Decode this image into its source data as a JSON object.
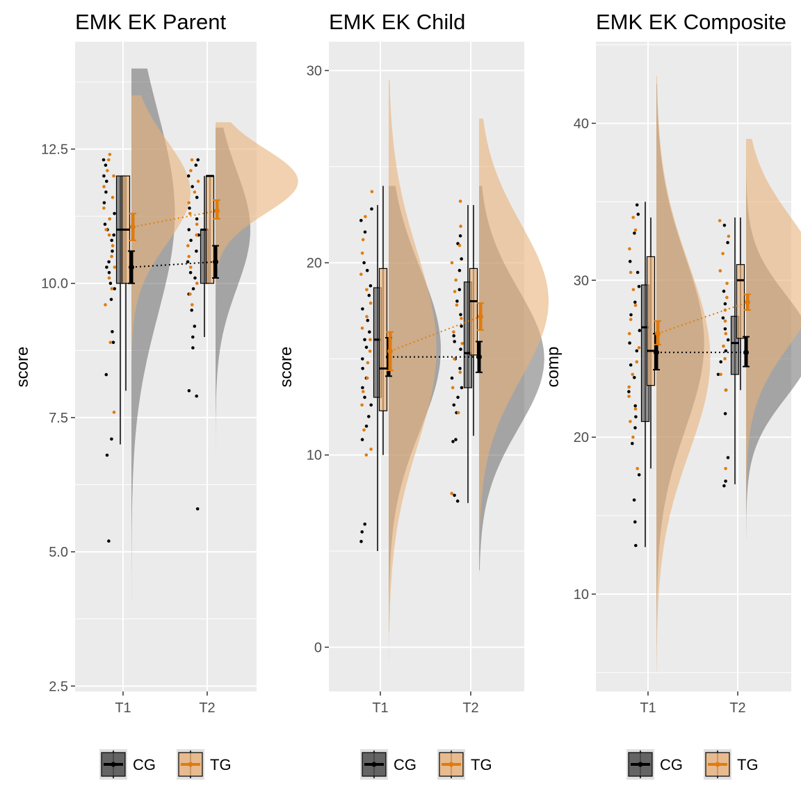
{
  "colors": {
    "CG": "#000000",
    "TG": "#e07b10",
    "CG_fill": "#4d4d4d",
    "TG_fill": "#e8b27a",
    "panel_bg": "#ebebeb",
    "grid": "#ffffff"
  },
  "legend": {
    "items": [
      {
        "key": "CG",
        "label": "CG"
      },
      {
        "key": "TG",
        "label": "TG"
      }
    ],
    "placement": "bottom"
  },
  "chart_data": [
    {
      "type": "raincloud",
      "title": "EMK EK Parent",
      "xlabel": "",
      "ylabel": "score",
      "categories": [
        "T1",
        "T2"
      ],
      "ylim": [
        2.4,
        14.5
      ],
      "yticks": [
        2.5,
        5.0,
        7.5,
        10.0,
        12.5
      ],
      "ytick_labels": [
        "2.5",
        "5.0",
        "7.5",
        "10.0",
        "12.5"
      ],
      "grid": true,
      "series": [
        {
          "name": "CG",
          "box": [
            {
              "category": "T1",
              "min": 7.0,
              "q1": 10.0,
              "median": 11.0,
              "q3": 12.0,
              "max": 12.0
            },
            {
              "category": "T2",
              "min": 9.0,
              "q1": 10.0,
              "median": 11.0,
              "q3": 11.0,
              "max": 12.0
            }
          ],
          "mean": [
            10.3,
            10.4
          ],
          "ci": [
            [
              10.0,
              10.6
            ],
            [
              10.1,
              10.7
            ]
          ],
          "density": [
            {
              "category": "T1",
              "ymin": 3.4,
              "ymax": 14.0,
              "peak": 11.3,
              "sd": 1.9,
              "w": 0.5
            },
            {
              "category": "T2",
              "ymin": 5.2,
              "ymax": 12.9,
              "peak": 11.0,
              "sd": 1.1,
              "w": 0.4
            }
          ],
          "points": [
            {
              "category": "T1",
              "values": [
                12.3,
                12.2,
                12.0,
                11.9,
                11.7,
                11.5,
                11.3,
                11.1,
                11.0,
                10.9,
                10.8,
                10.6,
                10.4,
                10.3,
                10.2,
                10.0,
                9.9,
                9.7,
                9.1,
                8.9,
                8.3,
                7.1,
                6.8,
                5.2
              ]
            },
            {
              "category": "T2",
              "values": [
                12.3,
                12.2,
                12.0,
                11.8,
                11.6,
                11.4,
                11.2,
                11.0,
                10.9,
                10.8,
                10.6,
                10.4,
                10.2,
                10.1,
                9.9,
                9.8,
                9.5,
                9.2,
                9.0,
                8.8,
                8.0,
                7.9,
                5.8
              ]
            }
          ]
        },
        {
          "name": "TG",
          "box": [
            {
              "category": "T1",
              "min": 8.0,
              "q1": 10.0,
              "median": 11.0,
              "q3": 12.0,
              "max": 12.0
            },
            {
              "category": "T2",
              "min": 10.0,
              "q1": 10.0,
              "median": 12.0,
              "q3": 12.0,
              "max": 12.0
            }
          ],
          "mean": [
            11.05,
            11.35
          ],
          "ci": [
            [
              10.8,
              11.3
            ],
            [
              11.2,
              11.55
            ]
          ],
          "density": [
            {
              "category": "T1",
              "ymin": 4.5,
              "ymax": 13.5,
              "peak": 11.7,
              "sd": 0.95,
              "w": 0.68
            },
            {
              "category": "T2",
              "ymin": 9.0,
              "ymax": 13.0,
              "peak": 11.9,
              "sd": 0.6,
              "w": 0.95
            }
          ],
          "points": [
            {
              "category": "T1",
              "values": [
                12.4,
                12.3,
                12.1,
                12.0,
                11.8,
                11.6,
                11.4,
                11.2,
                11.0,
                10.9,
                10.7,
                10.5,
                10.3,
                10.1,
                9.9,
                9.6,
                8.9,
                7.6
              ]
            },
            {
              "category": "T2",
              "values": [
                12.3,
                12.1,
                11.9,
                11.7,
                11.5,
                11.3,
                11.1,
                10.9,
                10.7,
                10.5,
                10.3,
                10.0,
                9.8,
                9.6
              ]
            }
          ]
        }
      ]
    },
    {
      "type": "raincloud",
      "title": "EMK EK Child",
      "xlabel": "",
      "ylabel": "score",
      "categories": [
        "T1",
        "T2"
      ],
      "ylim": [
        -2.3,
        31.5
      ],
      "yticks": [
        0,
        10,
        20,
        30
      ],
      "ytick_labels": [
        "0",
        "10",
        "20",
        "30"
      ],
      "grid": true,
      "series": [
        {
          "name": "CG",
          "box": [
            {
              "category": "T1",
              "min": 5.0,
              "q1": 13.0,
              "median": 16.0,
              "q3": 18.7,
              "max": 23.0
            },
            {
              "category": "T2",
              "min": 7.5,
              "q1": 13.5,
              "median": 15.3,
              "q3": 19.0,
              "max": 23.0
            }
          ],
          "mean": [
            15.1,
            15.1
          ],
          "ci": [
            [
              14.1,
              16.1
            ],
            [
              14.3,
              15.9
            ]
          ],
          "density": [
            {
              "category": "T1",
              "ymin": -0.8,
              "ymax": 24.0,
              "peak": 15.5,
              "sd": 4.2,
              "w": 0.6
            },
            {
              "category": "T2",
              "ymin": 4.0,
              "ymax": 24.0,
              "peak": 15.0,
              "sd": 3.6,
              "w": 0.75
            }
          ],
          "points": [
            {
              "category": "T1",
              "values": [
                22.8,
                22.2,
                21.6,
                20.0,
                19.6,
                18.8,
                18.3,
                17.6,
                17.0,
                16.4,
                16.0,
                15.6,
                15.0,
                14.5,
                14.0,
                13.5,
                13.0,
                12.6,
                12.0,
                11.5,
                10.8,
                6.4,
                6.0,
                5.5
              ]
            },
            {
              "category": "T2",
              "values": [
                21.4,
                21.0,
                20.2,
                19.6,
                18.6,
                18.0,
                17.3,
                16.7,
                16.2,
                15.9,
                15.5,
                15.0,
                14.5,
                14.0,
                13.5,
                13.0,
                12.6,
                12.2,
                10.8,
                10.7,
                7.9,
                7.6
              ]
            }
          ]
        },
        {
          "name": "TG",
          "box": [
            {
              "category": "T1",
              "min": 10.0,
              "q1": 12.3,
              "median": 14.5,
              "q3": 19.7,
              "max": 24.0
            },
            {
              "category": "T2",
              "min": 11.0,
              "q1": 15.2,
              "median": 18.0,
              "q3": 19.7,
              "max": 23.0
            }
          ],
          "mean": [
            15.4,
            17.2
          ],
          "ci": [
            [
              14.4,
              16.4
            ],
            [
              16.5,
              17.9
            ]
          ],
          "density": [
            {
              "category": "T1",
              "ymin": 0.8,
              "ymax": 29.5,
              "peak": 15.5,
              "sd": 5.0,
              "w": 0.55
            },
            {
              "category": "T2",
              "ymin": 3.5,
              "ymax": 27.5,
              "peak": 18.0,
              "sd": 4.0,
              "w": 0.8
            }
          ],
          "points": [
            {
              "category": "T1",
              "values": [
                23.7,
                22.4,
                21.2,
                20.5,
                19.4,
                18.6,
                17.9,
                17.2,
                16.6,
                16.0,
                15.4,
                14.8,
                14.0,
                13.3,
                12.6,
                11.3,
                10.3,
                10.0
              ]
            },
            {
              "category": "T2",
              "values": [
                23.2,
                21.9,
                20.9,
                20.0,
                19.1,
                18.5,
                17.8,
                17.1,
                16.4,
                15.8,
                15.0,
                14.3,
                13.5,
                12.2,
                8.0
              ]
            }
          ]
        }
      ]
    },
    {
      "type": "raincloud",
      "title": "EMK EK Composite",
      "xlabel": "",
      "ylabel": "comp",
      "categories": [
        "T1",
        "T2"
      ],
      "ylim": [
        3.8,
        45.2
      ],
      "yticks": [
        10,
        20,
        30,
        40
      ],
      "ytick_labels": [
        "10",
        "20",
        "30",
        "40"
      ],
      "grid": true,
      "series": [
        {
          "name": "CG",
          "box": [
            {
              "category": "T1",
              "min": 13.0,
              "q1": 21.0,
              "median": 27.0,
              "q3": 29.7,
              "max": 35.0
            },
            {
              "category": "T2",
              "min": 17.0,
              "q1": 24.0,
              "median": 26.0,
              "q3": 27.7,
              "max": 34.0
            }
          ],
          "mean": [
            25.4,
            25.4
          ],
          "ci": [
            [
              24.3,
              26.6
            ],
            [
              24.5,
              26.4
            ]
          ],
          "density": [
            {
              "category": "T1",
              "ymin": 5.5,
              "ymax": 42.5,
              "peak": 26.0,
              "sd": 5.5,
              "w": 0.55
            },
            {
              "category": "T2",
              "ymin": 13.5,
              "ymax": 37.5,
              "peak": 25.8,
              "sd": 3.3,
              "w": 0.75
            }
          ],
          "points": [
            {
              "category": "T1",
              "values": [
                34.8,
                34.2,
                33.0,
                31.2,
                30.5,
                29.6,
                28.6,
                27.8,
                26.8,
                26.0,
                25.5,
                24.6,
                23.8,
                22.9,
                22.0,
                21.3,
                20.6,
                19.6,
                17.6,
                16.0,
                14.6,
                13.1
              ]
            },
            {
              "category": "T2",
              "values": [
                33.5,
                32.4,
                29.3,
                28.5,
                27.6,
                26.9,
                26.2,
                25.5,
                24.8,
                24.0,
                23.0,
                21.5,
                18.7,
                17.2,
                16.9
              ]
            }
          ]
        },
        {
          "name": "TG",
          "box": [
            {
              "category": "T1",
              "min": 18.0,
              "q1": 23.3,
              "median": 25.5,
              "q3": 31.5,
              "max": 34.0
            },
            {
              "category": "T2",
              "min": 23.0,
              "q1": 26.3,
              "median": 30.0,
              "q3": 31.0,
              "max": 34.0
            }
          ],
          "mean": [
            26.6,
            28.6
          ],
          "ci": [
            [
              25.9,
              27.4
            ],
            [
              28.1,
              29.1
            ]
          ],
          "density": [
            {
              "category": "T1",
              "ymin": 5.0,
              "ymax": 43.0,
              "peak": 25.0,
              "sd": 6.0,
              "w": 0.62
            },
            {
              "category": "T2",
              "ymin": 13.0,
              "ymax": 39.0,
              "peak": 30.0,
              "sd": 4.0,
              "w": 0.85
            }
          ],
          "points": [
            {
              "category": "T1",
              "values": [
                34.0,
                33.2,
                32.0,
                30.5,
                29.4,
                28.4,
                27.5,
                26.6,
                25.7,
                24.8,
                24.0,
                23.2,
                22.6,
                21.8,
                21.0,
                20.0,
                18.0
              ]
            },
            {
              "category": "T2",
              "values": [
                33.8,
                32.8,
                31.7,
                30.6,
                29.8,
                28.9,
                28.1,
                27.4,
                26.6,
                25.8,
                25.0,
                24.0,
                23.0,
                18.0
              ]
            }
          ]
        }
      ]
    }
  ]
}
